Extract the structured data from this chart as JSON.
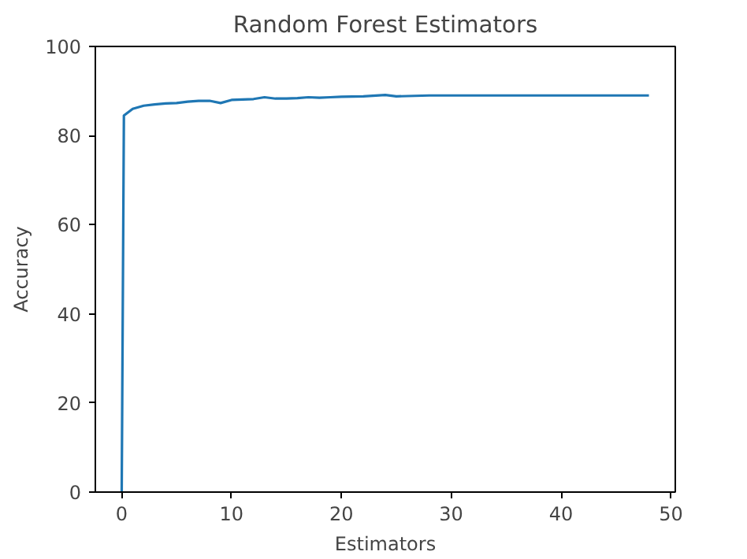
{
  "chart_data": {
    "type": "line",
    "title": "Random Forest Estimators",
    "xlabel": "Estimators",
    "ylabel": "Accuracy",
    "x": [
      0,
      0.2,
      1,
      2,
      3,
      4,
      5,
      6,
      7,
      8,
      9,
      10,
      11,
      12,
      13,
      14,
      15,
      16,
      17,
      18,
      19,
      20,
      22,
      24,
      25,
      28,
      30,
      35,
      40,
      48
    ],
    "series": [
      {
        "color": "#1f77b4",
        "values": [
          0,
          84.5,
          86,
          86.7,
          87,
          87.2,
          87.3,
          87.6,
          87.8,
          87.8,
          87.3,
          88,
          88.1,
          88.2,
          88.6,
          88.3,
          88.3,
          88.4,
          88.6,
          88.5,
          88.6,
          88.7,
          88.8,
          89.1,
          88.8,
          89,
          89,
          89,
          89,
          89
        ]
      }
    ],
    "xlim": [
      -2.4,
      50.4
    ],
    "ylim": [
      0,
      100
    ],
    "xticks": [
      0,
      10,
      20,
      30,
      40,
      50
    ],
    "yticks": [
      0,
      20,
      40,
      60,
      80,
      100
    ],
    "grid": false
  }
}
